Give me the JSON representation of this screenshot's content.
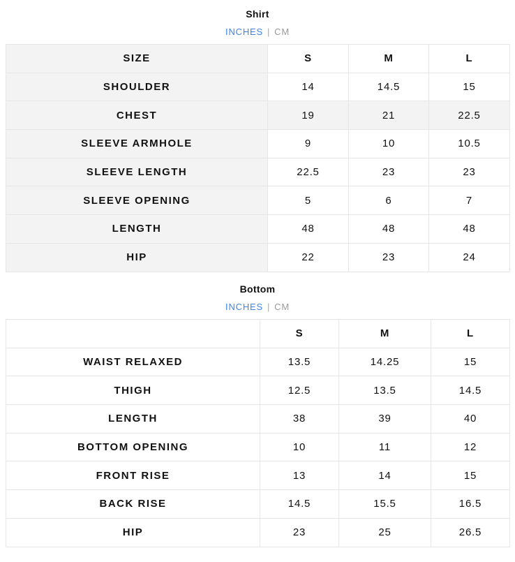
{
  "shirt": {
    "title": "Shirt",
    "units": {
      "inches": "INCHES",
      "separator": "|",
      "cm": "CM",
      "active": "INCHES"
    },
    "header": [
      "SIZE",
      "S",
      "M",
      "L"
    ],
    "rows": [
      {
        "label": "SHOULDER",
        "values": [
          "14",
          "14.5",
          "15"
        ]
      },
      {
        "label": "CHEST",
        "values": [
          "19",
          "21",
          "22.5"
        ]
      },
      {
        "label": "SLEEVE ARMHOLE",
        "values": [
          "9",
          "10",
          "10.5"
        ]
      },
      {
        "label": "SLEEVE LENGTH",
        "values": [
          "22.5",
          "23",
          "23"
        ]
      },
      {
        "label": "SLEEVE OPENING",
        "values": [
          "5",
          "6",
          "7"
        ]
      },
      {
        "label": "LENGTH",
        "values": [
          "48",
          "48",
          "48"
        ]
      },
      {
        "label": "HIP",
        "values": [
          "22",
          "23",
          "24"
        ]
      }
    ]
  },
  "bottom": {
    "title": "Bottom",
    "units": {
      "inches": "INCHES",
      "separator": "|",
      "cm": "CM",
      "active": "INCHES"
    },
    "header": [
      "",
      "S",
      "M",
      "L"
    ],
    "rows": [
      {
        "label": "WAIST RELAXED",
        "values": [
          "13.5",
          "14.25",
          "15"
        ]
      },
      {
        "label": "THIGH",
        "values": [
          "12.5",
          "13.5",
          "14.5"
        ]
      },
      {
        "label": "LENGTH",
        "values": [
          "38",
          "39",
          "40"
        ]
      },
      {
        "label": "BOTTOM OPENING",
        "values": [
          "10",
          "11",
          "12"
        ]
      },
      {
        "label": "FRONT RISE",
        "values": [
          "13",
          "14",
          "15"
        ]
      },
      {
        "label": "BACK RISE",
        "values": [
          "14.5",
          "15.5",
          "16.5"
        ]
      },
      {
        "label": "HIP",
        "values": [
          "23",
          "25",
          "26.5"
        ]
      }
    ]
  },
  "colors": {
    "accent": "#3d86e8",
    "shade": "#f3f3f3",
    "border": "#e6e6e6"
  }
}
